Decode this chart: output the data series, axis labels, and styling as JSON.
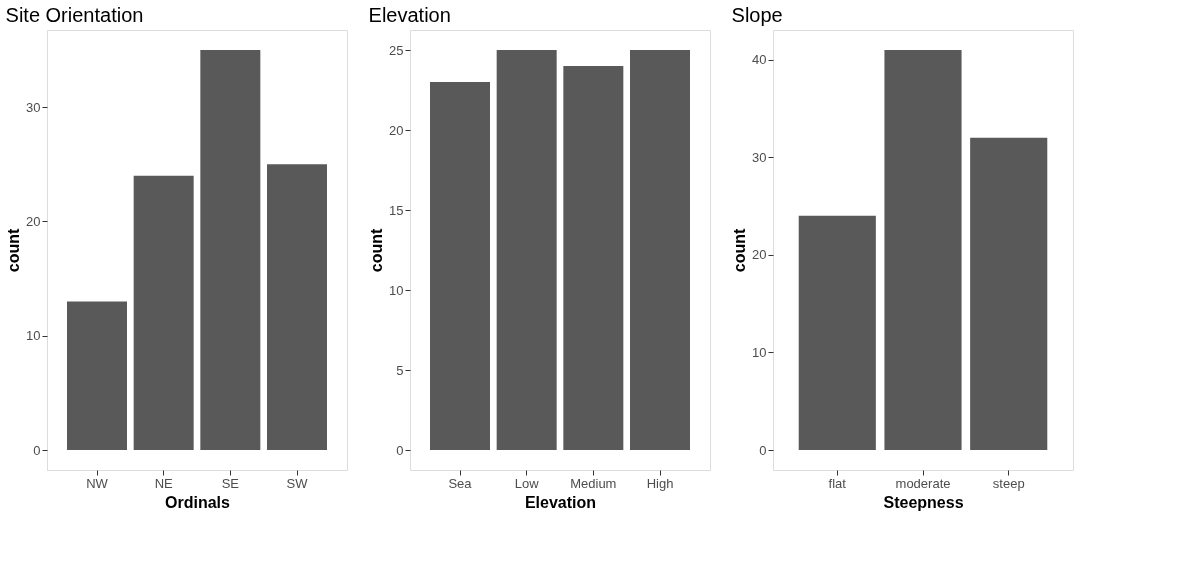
{
  "chart_data": [
    {
      "type": "bar",
      "title": "Site Orientation",
      "xlabel": "Ordinals",
      "ylabel": "count",
      "categories": [
        "NW",
        "NE",
        "SE",
        "SW"
      ],
      "values": [
        13,
        24,
        35,
        25
      ],
      "color": "#595959",
      "ylim": [
        -1.75,
        36.75
      ],
      "yticks": [
        0,
        10,
        20,
        30
      ],
      "grid": false
    },
    {
      "type": "bar",
      "title": "Elevation",
      "xlabel": "Elevation",
      "ylabel": "count",
      "categories": [
        "Sea",
        "Low",
        "Medium",
        "High"
      ],
      "values": [
        23,
        25,
        24,
        25
      ],
      "color": "#595959",
      "ylim": [
        -1.25,
        26.25
      ],
      "yticks": [
        0,
        5,
        10,
        15,
        20,
        25
      ],
      "grid": false
    },
    {
      "type": "bar",
      "title": "Slope",
      "xlabel": "Steepness",
      "ylabel": "count",
      "categories": [
        "flat",
        "moderate",
        "steep"
      ],
      "values": [
        24,
        41,
        32
      ],
      "color": "#595959",
      "ylim": [
        -2.05,
        43.05
      ],
      "yticks": [
        0,
        10,
        20,
        30,
        40
      ],
      "grid": false
    }
  ]
}
